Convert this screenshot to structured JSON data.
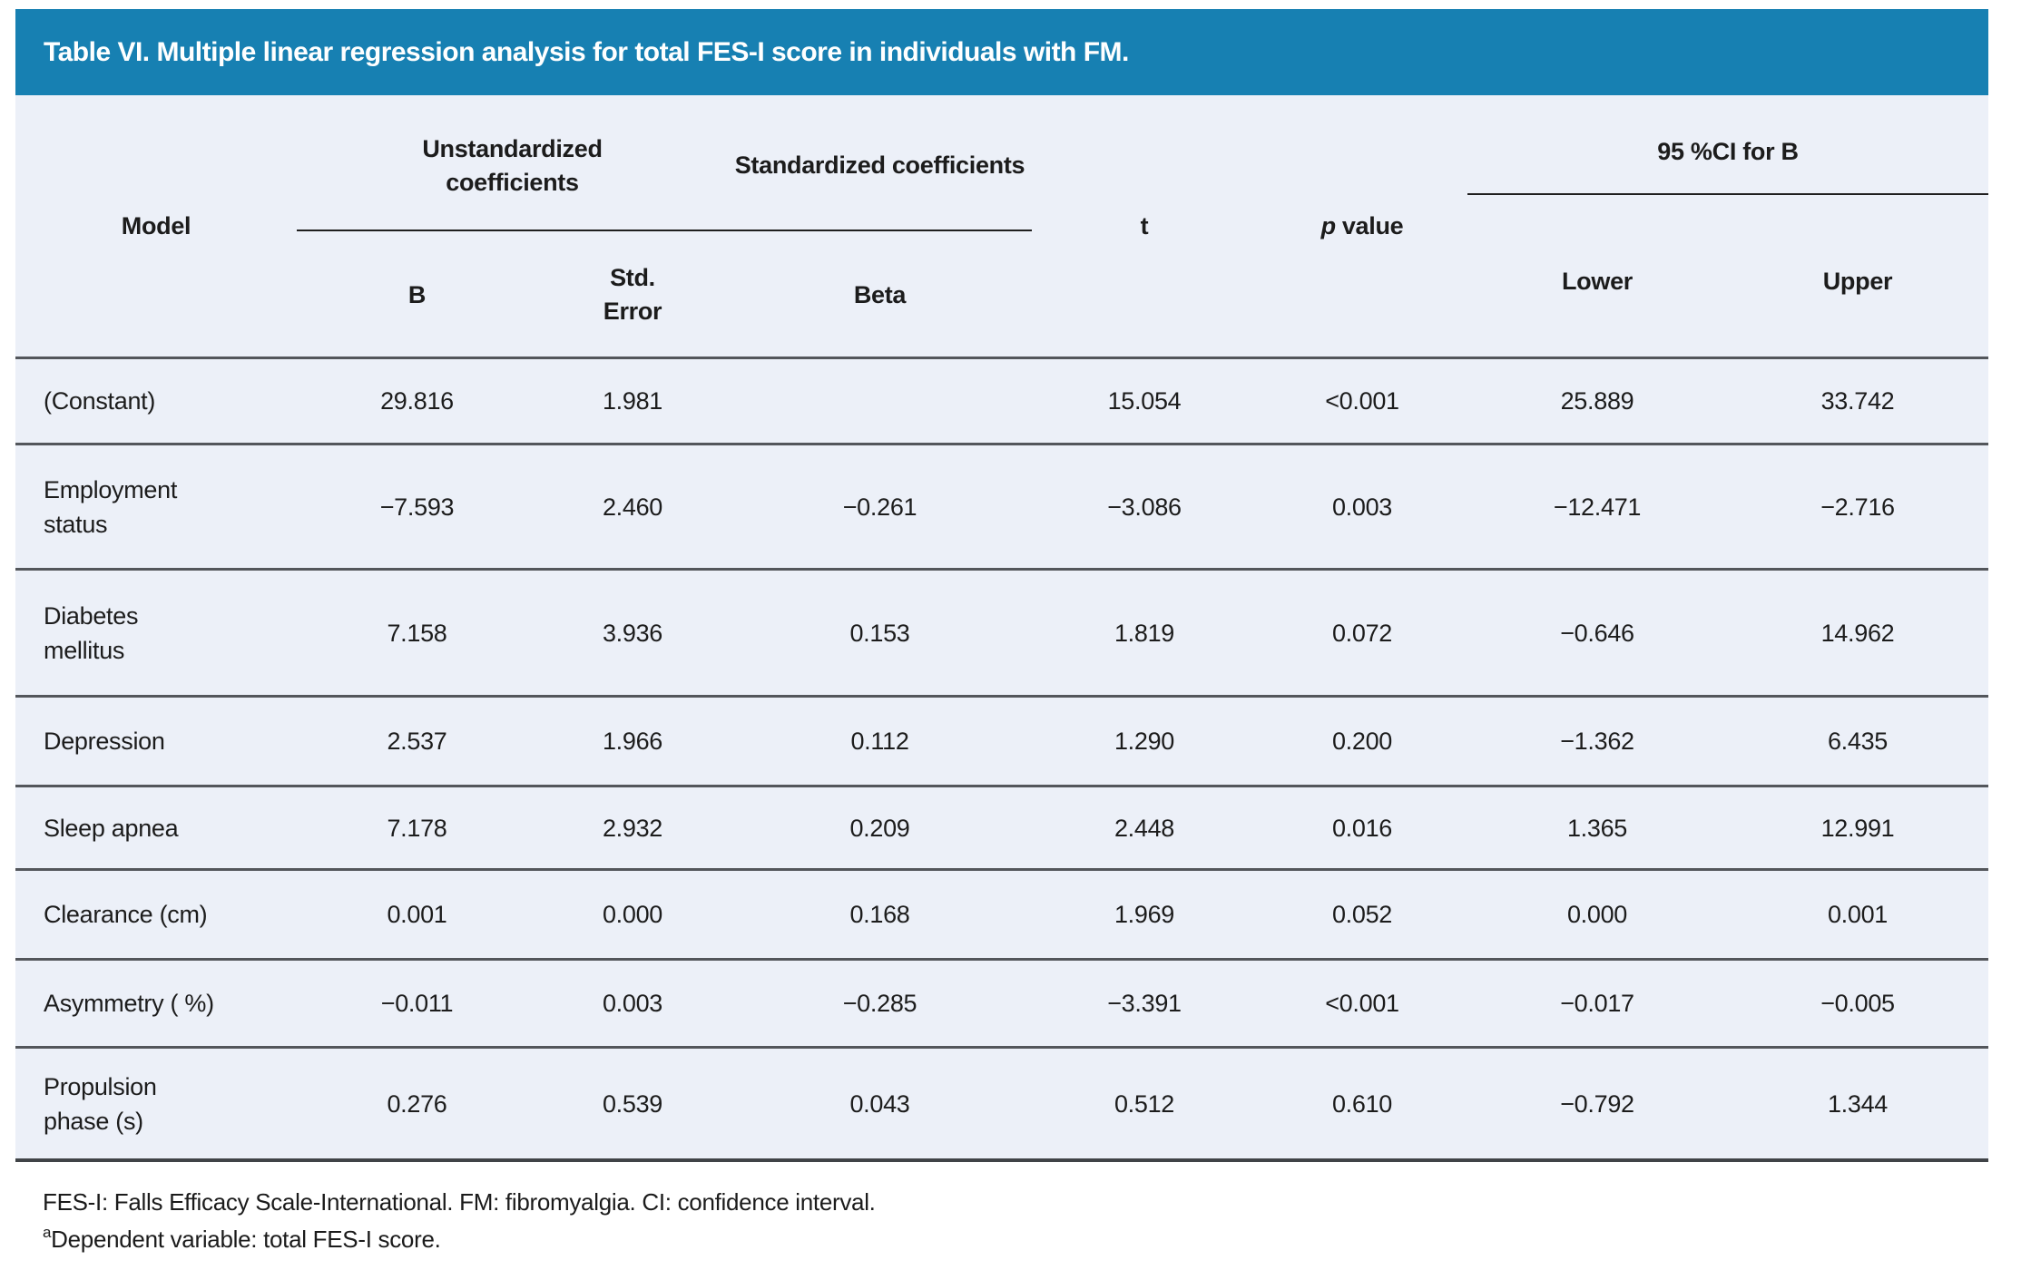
{
  "title": "Table VI. Multiple linear regression analysis for total FES-I score in individuals with FM.",
  "columns": {
    "model": "Model",
    "group_unstandardized": "Unstandardized coefficients",
    "group_standardized": "Standardized coefficients",
    "t": "t",
    "p_italic": "p",
    "p_word": "value",
    "group_ci": "95 %CI for B",
    "b": "B",
    "std_error_line1": "Std.",
    "std_error_line2": "Error",
    "beta": "Beta",
    "lower": "Lower",
    "upper": "Upper"
  },
  "rows": [
    {
      "model": "(Constant)",
      "b": "29.816",
      "se": "1.981",
      "beta": "",
      "t": "15.054",
      "p": "<0.001",
      "lower": "25.889",
      "upper": "33.742"
    },
    {
      "model": "Employment\nstatus",
      "b": "−7.593",
      "se": "2.460",
      "beta": "−0.261",
      "t": "−3.086",
      "p": "0.003",
      "lower": "−12.471",
      "upper": "−2.716"
    },
    {
      "model": "Diabetes\nmellitus",
      "b": "7.158",
      "se": "3.936",
      "beta": "0.153",
      "t": "1.819",
      "p": "0.072",
      "lower": "−0.646",
      "upper": "14.962"
    },
    {
      "model": "Depression",
      "b": "2.537",
      "se": "1.966",
      "beta": "0.112",
      "t": "1.290",
      "p": "0.200",
      "lower": "−1.362",
      "upper": "6.435"
    },
    {
      "model": "Sleep apnea",
      "b": "7.178",
      "se": "2.932",
      "beta": "0.209",
      "t": "2.448",
      "p": "0.016",
      "lower": "1.365",
      "upper": "12.991"
    },
    {
      "model": "Clearance (cm)",
      "b": "0.001",
      "se": "0.000",
      "beta": "0.168",
      "t": "1.969",
      "p": "0.052",
      "lower": "0.000",
      "upper": "0.001"
    },
    {
      "model": "Asymmetry ( %)",
      "b": "−0.011",
      "se": "0.003",
      "beta": "−0.285",
      "t": "−3.391",
      "p": "<0.001",
      "lower": "−0.017",
      "upper": "−0.005"
    },
    {
      "model": "Propulsion\nphase (s)",
      "b": "0.276",
      "se": "0.539",
      "beta": "0.043",
      "t": "0.512",
      "p": "0.610",
      "lower": "−0.792",
      "upper": "1.344"
    }
  ],
  "footnotes": {
    "line1": "FES-I: Falls Efficacy Scale-International. FM: fibromyalgia. CI: confidence interval.",
    "line2_sup": "a",
    "line2": "Dependent variable: total FES-I score."
  },
  "colors": {
    "header_bar": "#1780B2",
    "table_background": "#ECF0F8",
    "row_divider": "#53565B",
    "text": "#1C1C1C"
  }
}
